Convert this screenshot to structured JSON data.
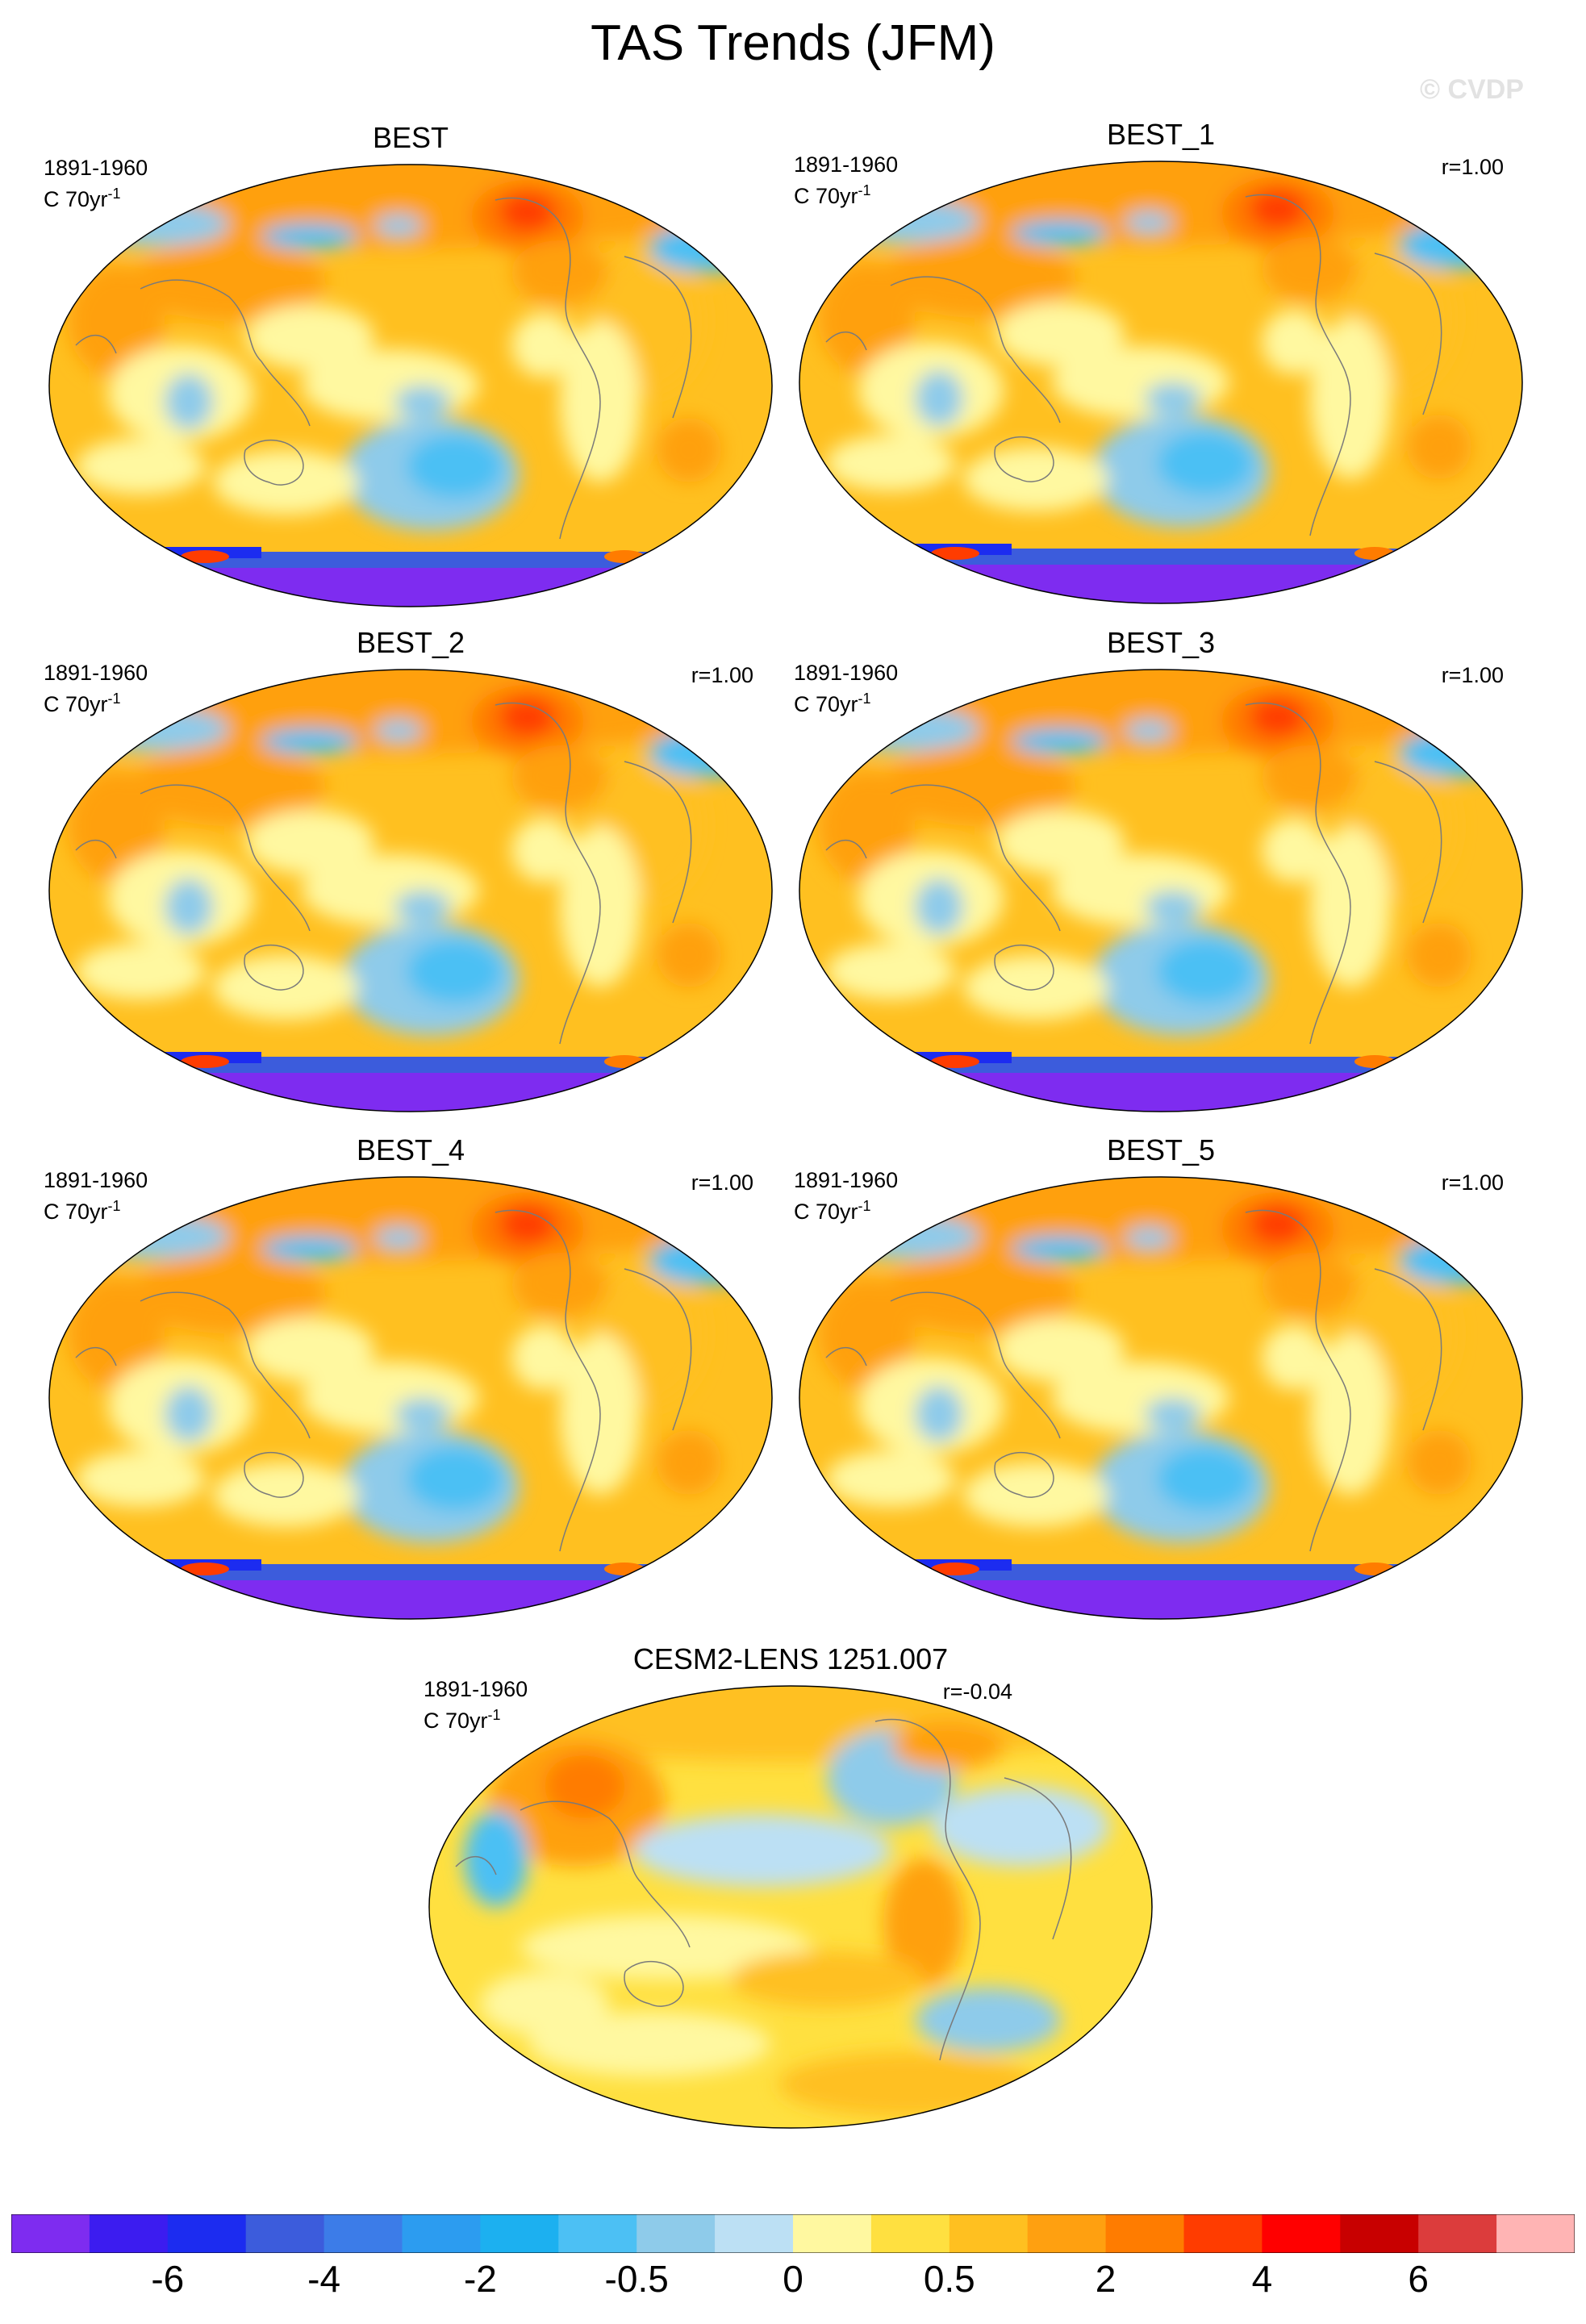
{
  "title": "TAS Trends (JFM)",
  "watermark": "© CVDP",
  "panels": [
    {
      "title": "BEST",
      "period": "1891-1960",
      "units": "C 70yr",
      "units_sup": "-1",
      "r": ""
    },
    {
      "title": "BEST_1",
      "period": "1891-1960",
      "units": "C 70yr",
      "units_sup": "-1",
      "r": "r=1.00"
    },
    {
      "title": "BEST_2",
      "period": "1891-1960",
      "units": "C 70yr",
      "units_sup": "-1",
      "r": "r=1.00"
    },
    {
      "title": "BEST_3",
      "period": "1891-1960",
      "units": "C 70yr",
      "units_sup": "-1",
      "r": "r=1.00"
    },
    {
      "title": "BEST_4",
      "period": "1891-1960",
      "units": "C 70yr",
      "units_sup": "-1",
      "r": "r=1.00"
    },
    {
      "title": "BEST_5",
      "period": "1891-1960",
      "units": "C 70yr",
      "units_sup": "-1",
      "r": "r=1.00"
    },
    {
      "title": "CESM2-LENS 1251.007",
      "period": "1891-1960",
      "units": "C 70yr",
      "units_sup": "-1",
      "r": "r=-0.04"
    }
  ],
  "colorbar": {
    "colors": [
      "#7e2cf0",
      "#3c1cf0",
      "#1c2cf0",
      "#3c5cdc",
      "#3c7ce8",
      "#2c9cf0",
      "#1cb0f0",
      "#4cc0f4",
      "#8ecbea",
      "#bce0f4",
      "#fff8a0",
      "#ffe040",
      "#ffc020",
      "#ffa010",
      "#ff7c00",
      "#ff3c00",
      "#ff0000",
      "#c80000",
      "#dc3c3c",
      "#ffb4b4"
    ],
    "labels": [
      "-6",
      "-4",
      "-2",
      "-0.5",
      "0",
      "0.5",
      "2",
      "4",
      "6"
    ]
  }
}
